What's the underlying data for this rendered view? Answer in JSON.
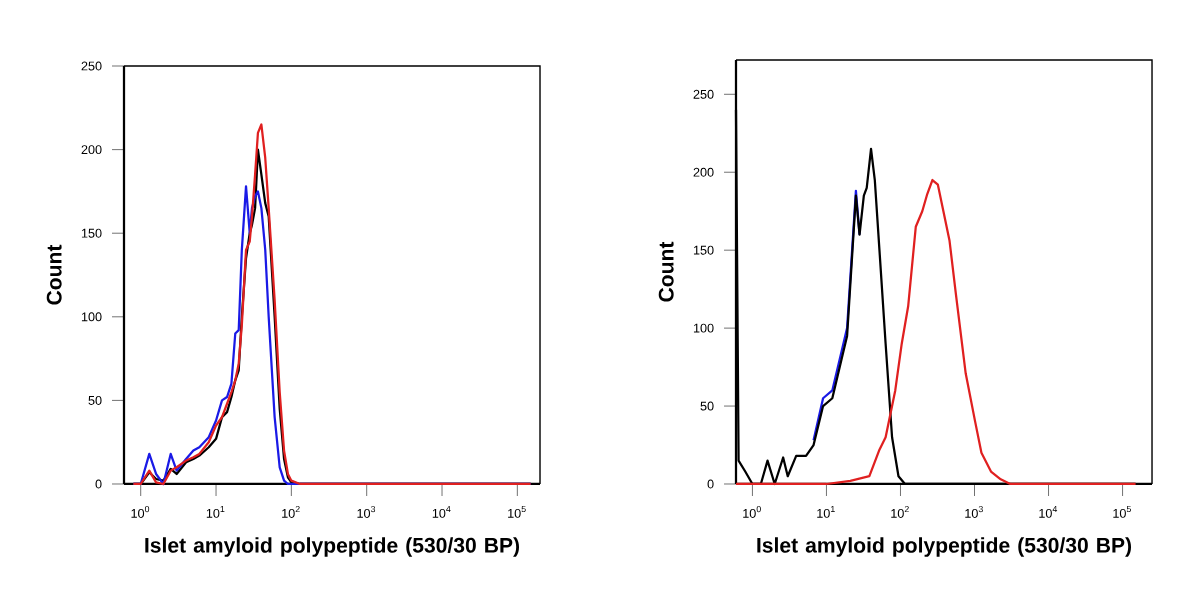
{
  "chart_data": [
    {
      "type": "line",
      "xlabel": "Islet amyloid polypeptide (530/30 BP)",
      "ylabel": "Count",
      "log": "x",
      "xlim": [
        0.6,
        200000
      ],
      "ylim": [
        0,
        250
      ],
      "xticks": [
        {
          "value": 1,
          "label": "10$^{0}$"
        },
        {
          "value": 10,
          "label": "10$^{1}$"
        },
        {
          "value": 100,
          "label": "10$^{2}$"
        },
        {
          "value": 1000,
          "label": "10$^{3}$"
        },
        {
          "value": 10000,
          "label": "10$^{4}$"
        },
        {
          "value": 100000,
          "label": "10$^{5}$"
        }
      ],
      "yticks": [
        0,
        50,
        100,
        150,
        200,
        250
      ],
      "grid": false,
      "marker": "none",
      "line_style": "solid",
      "x": [
        0.8,
        1,
        1.3,
        1.6,
        2,
        2.5,
        3,
        4,
        5,
        6,
        8,
        10,
        12,
        14,
        16,
        18,
        20,
        22,
        25,
        28,
        30,
        33,
        36,
        40,
        45,
        50,
        60,
        70,
        80,
        90,
        100,
        130,
        200,
        150000
      ],
      "series": [
        {
          "color": "#000000",
          "values": [
            0,
            0,
            7,
            3,
            2,
            9,
            6,
            13,
            15,
            17,
            22,
            27,
            40,
            43,
            52,
            62,
            68,
            100,
            135,
            150,
            155,
            165,
            200,
            185,
            168,
            160,
            100,
            45,
            15,
            4,
            1,
            0,
            0,
            0
          ]
        },
        {
          "color": "#1a1ae6",
          "values": [
            0,
            0,
            18,
            6,
            0,
            18,
            8,
            15,
            20,
            22,
            28,
            38,
            50,
            52,
            60,
            90,
            92,
            140,
            178,
            150,
            165,
            172,
            175,
            165,
            140,
            100,
            40,
            10,
            2,
            0,
            0,
            0,
            0,
            0
          ]
        },
        {
          "color": "#e02020",
          "values": [
            0,
            0,
            8,
            1,
            0,
            8,
            10,
            14,
            16,
            18,
            25,
            35,
            40,
            48,
            55,
            62,
            72,
            95,
            140,
            145,
            160,
            185,
            210,
            215,
            195,
            165,
            110,
            55,
            20,
            6,
            2,
            0,
            0,
            0
          ]
        }
      ]
    },
    {
      "type": "line",
      "xlabel": "Islet amyloid polypeptide (530/30 BP)",
      "ylabel": "Count",
      "log": "x",
      "xlim": [
        0.6,
        250000
      ],
      "ylim": [
        0,
        272
      ],
      "xticks": [
        {
          "value": 1,
          "label": "10$^{0}$"
        },
        {
          "value": 10,
          "label": "10$^{1}$"
        },
        {
          "value": 100,
          "label": "10$^{2}$"
        },
        {
          "value": 1000,
          "label": "10$^{3}$"
        },
        {
          "value": 10000,
          "label": "10$^{4}$"
        },
        {
          "value": 100000,
          "label": "10$^{5}$"
        }
      ],
      "yticks": [
        0,
        50,
        100,
        150,
        200,
        250
      ],
      "grid": false,
      "marker": "none",
      "line_style": "solid",
      "series": [
        {
          "color": "#1a1ae6",
          "x": [
            6.7,
            9,
            12,
            16,
            19,
            25,
            28
          ],
          "values": [
            28,
            55,
            60,
            85,
            100,
            188,
            160
          ]
        },
        {
          "color": "#000000",
          "x": [
            0.6,
            0.65,
            0.8,
            1,
            1.3,
            1.6,
            2,
            2.6,
            3,
            3.9,
            5.3,
            6.7,
            9,
            12,
            16,
            19,
            25,
            28,
            32,
            35,
            40,
            45,
            52,
            63,
            77,
            94,
            115,
            150000
          ],
          "values": [
            240,
            15,
            8,
            0,
            0,
            15,
            0,
            17,
            5,
            18,
            18,
            25,
            50,
            55,
            80,
            95,
            185,
            160,
            185,
            190,
            215,
            195,
            150,
            90,
            30,
            5,
            0,
            0
          ]
        },
        {
          "color": "#e02020",
          "x": [
            0.6,
            10,
            21,
            38,
            52,
            63,
            85,
            104,
            127,
            161,
            197,
            230,
            270,
            320,
            380,
            460,
            560,
            760,
            1020,
            1240,
            1670,
            2260,
            3040,
            150000
          ],
          "values": [
            0,
            0,
            2,
            5,
            22,
            30,
            60,
            90,
            114,
            165,
            175,
            186,
            195,
            192,
            175,
            156,
            122,
            71,
            40,
            20,
            8,
            3,
            0,
            0
          ]
        }
      ]
    }
  ]
}
